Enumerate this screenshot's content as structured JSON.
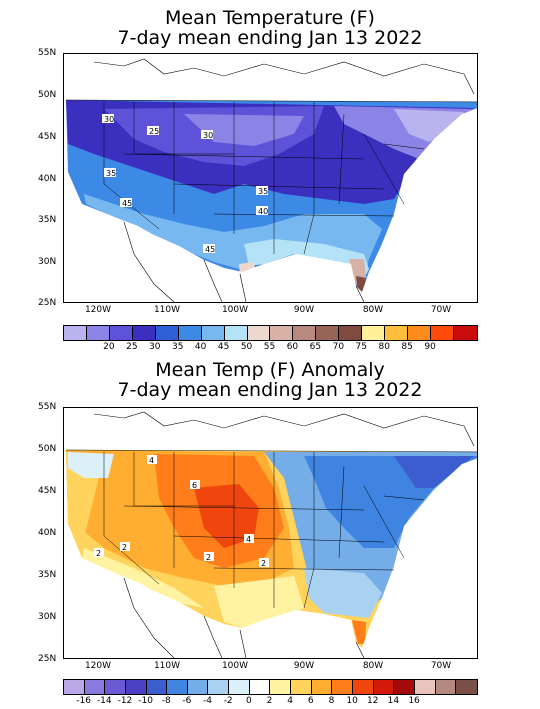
{
  "panels": [
    {
      "title_line1": "Mean Temperature (F)",
      "title_line2": "7-day mean ending Jan 13 2022",
      "lat_labels": [
        "55N",
        "50N",
        "45N",
        "40N",
        "35N",
        "30N",
        "25N"
      ],
      "lon_labels": [
        "120W",
        "110W",
        "100W",
        "90W",
        "80W",
        "70W"
      ],
      "contour_labels": [
        "30",
        "25",
        "30",
        "35",
        "45",
        "35",
        "40",
        "45"
      ],
      "colorbar": {
        "colors": [
          "#b9b4f0",
          "#8c83e6",
          "#5e52d8",
          "#3b2fbf",
          "#2e5fd6",
          "#3c8ae6",
          "#78b8f0",
          "#b4e2f6",
          "#eed7cf",
          "#d7b1a4",
          "#b88a7f",
          "#996458",
          "#7f4a40",
          "#fff099",
          "#ffbf3c",
          "#ff8a1e",
          "#ff4a0c",
          "#c80c0c"
        ],
        "labels": [
          "20",
          "25",
          "30",
          "35",
          "40",
          "45",
          "50",
          "55",
          "60",
          "65",
          "70",
          "75",
          "80",
          "85",
          "90"
        ]
      }
    },
    {
      "title_line1": "Mean Temp (F) Anomaly",
      "title_line2": "7-day mean ending Jan 13 2022",
      "lat_labels": [
        "55N",
        "50N",
        "45N",
        "40N",
        "35N",
        "30N",
        "25N"
      ],
      "lon_labels": [
        "120W",
        "110W",
        "100W",
        "90W",
        "80W",
        "70W"
      ],
      "contour_labels": [
        "4",
        "6",
        "2",
        "4",
        "2",
        "2",
        "2"
      ],
      "colorbar": {
        "colors": [
          "#b9a7e8",
          "#8a7ae0",
          "#6a5bd4",
          "#4b3fc4",
          "#3b5dd0",
          "#3e84e0",
          "#74ade8",
          "#a9d2f0",
          "#dcf0fa",
          "#ffffff",
          "#fff2a0",
          "#ffd35c",
          "#ffae32",
          "#ff7d1a",
          "#f0460e",
          "#d2190a",
          "#a50a0a",
          "#e8c4bd",
          "#b48a80",
          "#7a5048"
        ],
        "labels": [
          "-16",
          "-14",
          "-12",
          "-10",
          "-8",
          "-6",
          "-4",
          "-2",
          "0",
          "2",
          "4",
          "6",
          "8",
          "10",
          "12",
          "14",
          "16"
        ]
      }
    }
  ]
}
